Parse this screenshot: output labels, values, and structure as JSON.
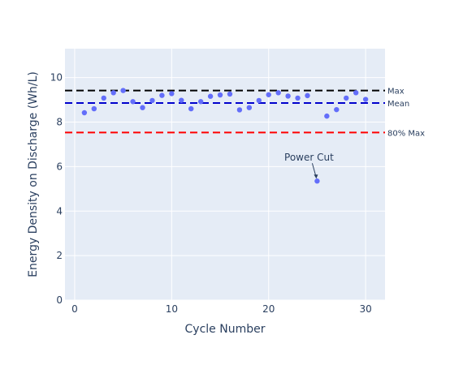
{
  "chart_data": {
    "type": "scatter",
    "xlabel": "Cycle Number",
    "ylabel": "Energy Density on Discharge (Wh/L)",
    "xlim": [
      -1,
      32
    ],
    "ylim": [
      0,
      11.3
    ],
    "x_ticks": [
      0,
      10,
      20,
      30
    ],
    "y_ticks": [
      0,
      2,
      4,
      6,
      8,
      10
    ],
    "grid": true,
    "colors": {
      "plot_bg": "#e5ecf6",
      "grid": "#ffffff",
      "points": "#636efa",
      "max_line": "#000000",
      "mean_line": "#0000cc",
      "pct80_line": "#ff0000"
    },
    "points": {
      "x": [
        1,
        2,
        3,
        4,
        5,
        6,
        7,
        8,
        9,
        10,
        11,
        12,
        13,
        14,
        15,
        16,
        17,
        18,
        19,
        20,
        21,
        22,
        23,
        24,
        25,
        26,
        27,
        28,
        29,
        30
      ],
      "y": [
        8.42,
        8.6,
        9.08,
        9.32,
        9.42,
        8.92,
        8.65,
        8.97,
        9.2,
        9.28,
        8.98,
        8.6,
        8.92,
        9.16,
        9.22,
        9.26,
        8.55,
        8.65,
        8.97,
        9.23,
        9.32,
        9.17,
        9.08,
        9.19,
        5.35,
        8.27,
        8.56,
        9.08,
        9.32,
        9.02
      ]
    },
    "reference_lines": [
      {
        "label": "Max",
        "y": 9.42,
        "color": "#000000"
      },
      {
        "label": "Mean",
        "y": 8.86,
        "color": "#0000cc"
      },
      {
        "label": "80% Max",
        "y": 7.53,
        "color": "#ff0000"
      }
    ],
    "annotation": {
      "text": "Power Cut",
      "x": 25,
      "y": 5.35
    }
  }
}
